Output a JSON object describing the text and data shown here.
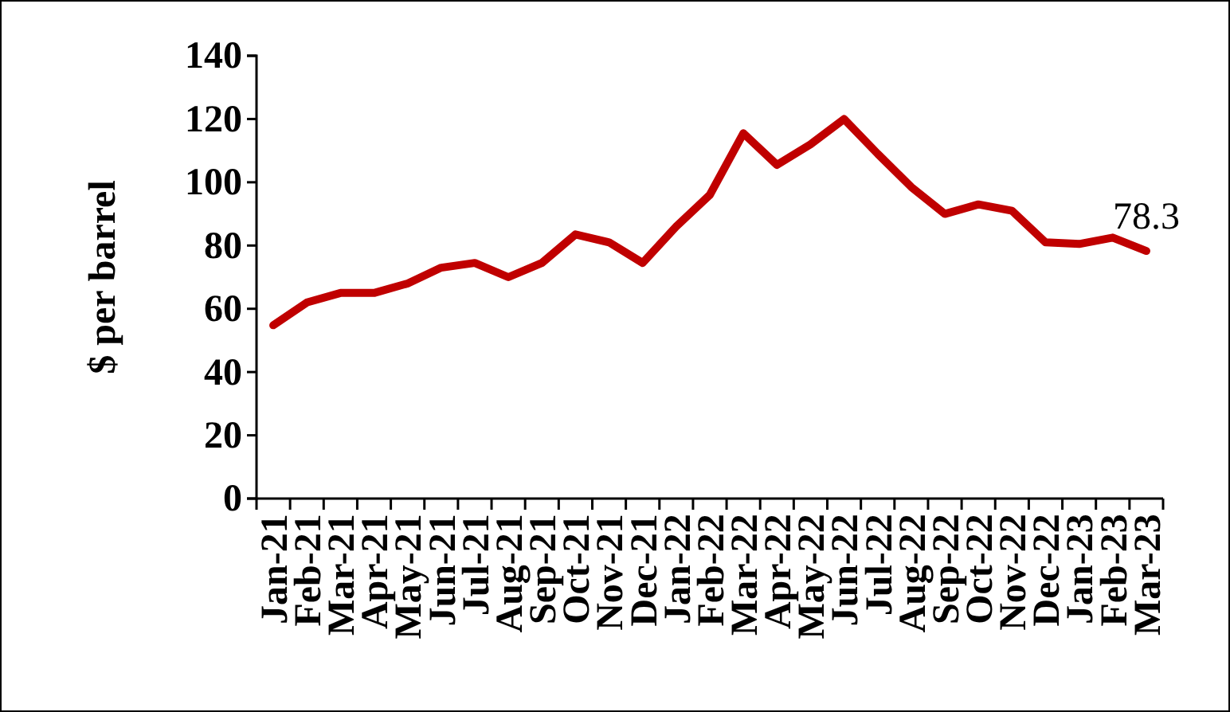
{
  "chart_data": {
    "type": "line",
    "ylabel": "$ per barrel",
    "categories": [
      "Jan-21",
      "Feb-21",
      "Mar-21",
      "Apr-21",
      "May-21",
      "Jun-21",
      "Jul-21",
      "Aug-21",
      "Sep-21",
      "Oct-21",
      "Nov-21",
      "Dec-21",
      "Jan-22",
      "Feb-22",
      "Mar-22",
      "Apr-22",
      "May-22",
      "Jun-22",
      "Jul-22",
      "Aug-22",
      "Sep-22",
      "Oct-22",
      "Nov-22",
      "Dec-22",
      "Jan-23",
      "Feb-23",
      "Mar-23"
    ],
    "series": [
      {
        "color": "#c00000",
        "values": [
          54.8,
          62,
          65,
          65,
          68,
          73,
          74.5,
          70,
          74.5,
          83.5,
          81,
          74.5,
          86,
          96,
          115.5,
          105.5,
          112,
          120,
          109,
          98.5,
          90,
          93,
          91,
          81,
          80.5,
          82.5,
          78.3
        ],
        "value_labels": [
          null,
          null,
          null,
          null,
          null,
          null,
          null,
          null,
          null,
          null,
          null,
          null,
          null,
          null,
          null,
          null,
          null,
          null,
          null,
          null,
          null,
          null,
          null,
          null,
          null,
          null,
          "78.3"
        ]
      }
    ],
    "ylim": [
      0,
      140
    ],
    "yticks": [
      0,
      20,
      40,
      60,
      80,
      100,
      120,
      140
    ],
    "line_style": "solid"
  }
}
